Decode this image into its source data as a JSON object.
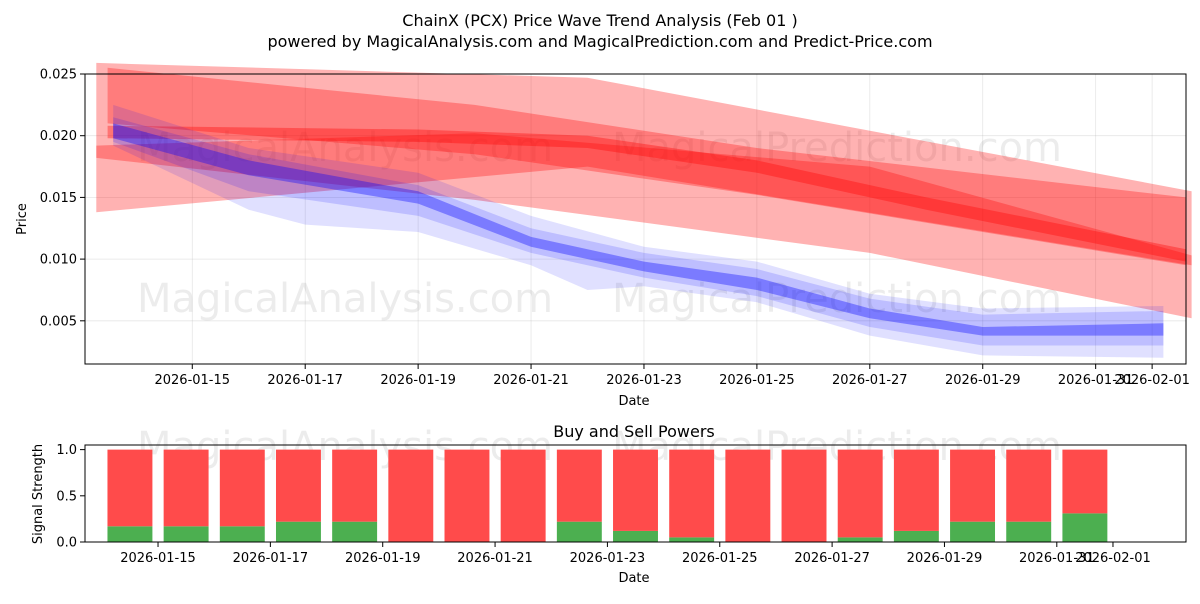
{
  "title": "ChainX (PCX) Price Wave Trend Analysis (Feb 01 )",
  "subtitle": "powered by MagicalAnalysis.com and MagicalPrediction.com and Predict-Price.com",
  "watermarks": [
    "MagicalAnalysis.com",
    "MagicalPrediction.com"
  ],
  "chart_data": [
    {
      "type": "line",
      "name": "price-wave-chart",
      "xlabel": "Date",
      "ylabel": "Price",
      "ylim": [
        0.0015,
        0.025
      ],
      "yticks": [
        0.005,
        0.01,
        0.015,
        0.02,
        0.025
      ],
      "ytick_labels": [
        "0.005",
        "0.010",
        "0.015",
        "0.020",
        "0.025"
      ],
      "xlim": [
        13.1,
        32.6
      ],
      "xticks": [
        15,
        17,
        19,
        21,
        23,
        25,
        27,
        29,
        31,
        32
      ],
      "xtick_labels": [
        "2026-01-15",
        "2026-01-17",
        "2026-01-19",
        "2026-01-21",
        "2026-01-23",
        "2026-01-25",
        "2026-01-27",
        "2026-01-29",
        "2026-01-31",
        "2026-02-01"
      ],
      "grid": true,
      "series": [
        {
          "name": "red-wide-band",
          "color": "#ff0000",
          "opacity": 0.3,
          "upper": [
            [
              13.3,
              0.0259
            ],
            [
              22.0,
              0.0247
            ],
            [
              32.7,
              0.0155
            ]
          ],
          "lower": [
            [
              32.7,
              0.0095
            ],
            [
              22.0,
              0.0175
            ],
            [
              13.3,
              0.0138
            ]
          ]
        },
        {
          "name": "red-wide-band-2",
          "color": "#ff0000",
          "opacity": 0.3,
          "upper": [
            [
              13.3,
              0.0192
            ],
            [
              20.0,
              0.0202
            ],
            [
              27.0,
              0.0175
            ],
            [
              32.7,
              0.0103
            ]
          ],
          "lower": [
            [
              32.7,
              0.0052
            ],
            [
              27.0,
              0.0105
            ],
            [
              20.0,
              0.0148
            ],
            [
              13.3,
              0.0182
            ]
          ]
        },
        {
          "name": "red-band",
          "color": "#ff0000",
          "opacity": 0.3,
          "upper": [
            [
              13.5,
              0.0255
            ],
            [
              20.0,
              0.0225
            ],
            [
              25.0,
              0.019
            ],
            [
              32.6,
              0.015
            ]
          ],
          "lower": [
            [
              32.6,
              0.0095
            ],
            [
              25.0,
              0.0152
            ],
            [
              20.0,
              0.0185
            ],
            [
              13.5,
              0.021
            ]
          ]
        },
        {
          "name": "red-center-line",
          "color": "#ff0000",
          "opacity": 0.35,
          "upper": [
            [
              13.5,
              0.0208
            ],
            [
              19.0,
              0.0205
            ],
            [
              22.0,
              0.02
            ],
            [
              25.0,
              0.018
            ],
            [
              28.0,
              0.015
            ],
            [
              32.6,
              0.0108
            ]
          ],
          "lower": [
            [
              32.6,
              0.0098
            ],
            [
              28.0,
              0.014
            ],
            [
              25.0,
              0.017
            ],
            [
              22.0,
              0.019
            ],
            [
              19.0,
              0.0195
            ],
            [
              13.5,
              0.0198
            ]
          ]
        },
        {
          "name": "blue-wide-band",
          "color": "#0000ff",
          "opacity": 0.12,
          "upper": [
            [
              13.6,
              0.0225
            ],
            [
              16.0,
              0.019
            ],
            [
              19.0,
              0.017
            ],
            [
              21.0,
              0.0135
            ],
            [
              23.0,
              0.011
            ],
            [
              25.0,
              0.0098
            ],
            [
              27.0,
              0.0072
            ],
            [
              29.0,
              0.006
            ],
            [
              32.2,
              0.0062
            ]
          ],
          "lower": [
            [
              32.2,
              0.002
            ],
            [
              29.0,
              0.0022
            ],
            [
              27.0,
              0.0038
            ],
            [
              25.0,
              0.0065
            ],
            [
              23.0,
              0.0078
            ],
            [
              22.0,
              0.0075
            ],
            [
              21.0,
              0.0095
            ],
            [
              19.0,
              0.0122
            ],
            [
              17.0,
              0.0128
            ],
            [
              16.0,
              0.014
            ],
            [
              13.6,
              0.0192
            ]
          ]
        },
        {
          "name": "blue-mid-band",
          "color": "#0000ff",
          "opacity": 0.15,
          "upper": [
            [
              13.6,
              0.0215
            ],
            [
              16.0,
              0.0185
            ],
            [
              19.0,
              0.016
            ],
            [
              21.0,
              0.0125
            ],
            [
              23.0,
              0.0105
            ],
            [
              25.0,
              0.0092
            ],
            [
              27.0,
              0.0068
            ],
            [
              29.0,
              0.0055
            ],
            [
              32.2,
              0.0058
            ]
          ],
          "lower": [
            [
              32.2,
              0.003
            ],
            [
              29.0,
              0.003
            ],
            [
              27.0,
              0.0045
            ],
            [
              25.0,
              0.007
            ],
            [
              23.0,
              0.0085
            ],
            [
              21.0,
              0.0105
            ],
            [
              19.0,
              0.0135
            ],
            [
              16.0,
              0.0155
            ],
            [
              13.6,
              0.0195
            ]
          ]
        },
        {
          "name": "blue-center-line",
          "color": "#0000ff",
          "opacity": 0.35,
          "upper": [
            [
              13.6,
              0.021
            ],
            [
              16.0,
              0.018
            ],
            [
              19.0,
              0.0155
            ],
            [
              21.0,
              0.0118
            ],
            [
              23.0,
              0.0098
            ],
            [
              25.0,
              0.0085
            ],
            [
              27.0,
              0.006
            ],
            [
              29.0,
              0.0045
            ],
            [
              32.2,
              0.0048
            ]
          ],
          "lower": [
            [
              32.2,
              0.0038
            ],
            [
              29.0,
              0.0038
            ],
            [
              27.0,
              0.0052
            ],
            [
              25.0,
              0.0075
            ],
            [
              23.0,
              0.009
            ],
            [
              21.0,
              0.011
            ],
            [
              19.0,
              0.0145
            ],
            [
              16.0,
              0.0168
            ],
            [
              13.6,
              0.0198
            ]
          ]
        }
      ]
    },
    {
      "type": "bar",
      "name": "buy-sell-powers-chart",
      "title": "Buy and Sell Powers",
      "xlabel": "Date",
      "ylabel": "Signal Strength",
      "ylim": [
        0,
        1.05
      ],
      "yticks": [
        0.0,
        0.5,
        1.0
      ],
      "ytick_labels": [
        "0.0",
        "0.5",
        "1.0"
      ],
      "xlim": [
        13.7,
        33.3
      ],
      "xticks": [
        15,
        17,
        19,
        21,
        23,
        25,
        27,
        29,
        31,
        32
      ],
      "xtick_labels": [
        "2026-01-15",
        "2026-01-17",
        "2026-01-19",
        "2026-01-21",
        "2026-01-23",
        "2026-01-25",
        "2026-01-27",
        "2026-01-29",
        "2026-01-31",
        "2026-02-01"
      ],
      "days": [
        14.5,
        15.5,
        16.5,
        17.5,
        18.5,
        19.5,
        20.5,
        21.5,
        22.5,
        23.5,
        24.5,
        25.5,
        26.5,
        27.5,
        28.5,
        29.5,
        30.5,
        31.5
      ],
      "series": [
        {
          "name": "Buy",
          "color": "#4caf50",
          "values": [
            0.17,
            0.17,
            0.17,
            0.22,
            0.22,
            0.0,
            0.0,
            0.0,
            0.22,
            0.12,
            0.05,
            0.0,
            0.0,
            0.05,
            0.12,
            0.22,
            0.22,
            0.31
          ]
        },
        {
          "name": "Sell",
          "color": "#ff4b4b",
          "values": [
            0.83,
            0.83,
            0.83,
            0.78,
            0.78,
            1.0,
            1.0,
            1.0,
            0.78,
            0.88,
            0.95,
            1.0,
            1.0,
            0.95,
            0.88,
            0.78,
            0.78,
            0.69
          ]
        }
      ]
    }
  ]
}
